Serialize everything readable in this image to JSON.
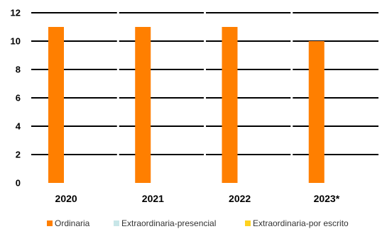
{
  "chart_data": {
    "type": "bar",
    "title": "",
    "xlabel": "",
    "ylabel": "",
    "categories": [
      "2020",
      "2021",
      "2022",
      "2023*"
    ],
    "series": [
      {
        "name": "Ordinaria",
        "color": "#ff7f00",
        "values": [
          11,
          11,
          11,
          10
        ]
      },
      {
        "name": "Extraordinaria-presencial",
        "color": "#c8e6e8",
        "values": [
          0,
          0,
          0,
          0
        ]
      },
      {
        "name": "Extraordinaria-por escrito",
        "color": "#ffd21f",
        "values": [
          0,
          0,
          0,
          0
        ]
      }
    ],
    "ylim": [
      0,
      12
    ],
    "yticks": [
      0,
      2,
      4,
      6,
      8,
      10,
      12
    ],
    "grid": true,
    "legend_position": "bottom"
  }
}
